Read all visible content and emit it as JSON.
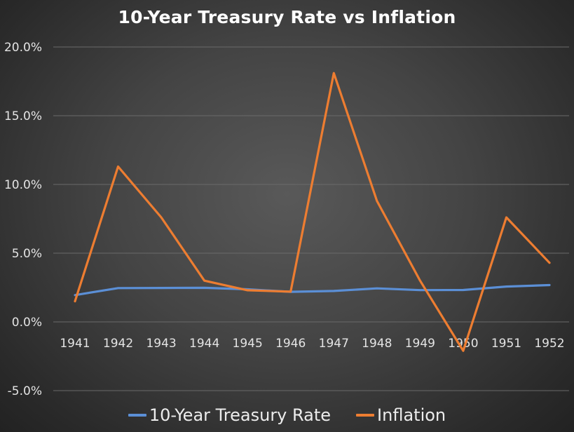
{
  "chart_data": {
    "type": "line",
    "title": "10-Year Treasury Rate vs Inflation",
    "categories": [
      "1941",
      "1942",
      "1943",
      "1944",
      "1945",
      "1946",
      "1947",
      "1948",
      "1949",
      "1950",
      "1951",
      "1952"
    ],
    "series": [
      {
        "name": "10-Year Treasury Rate",
        "color": "#5b8fd6",
        "values": [
          1.95,
          2.46,
          2.47,
          2.48,
          2.37,
          2.19,
          2.25,
          2.44,
          2.31,
          2.32,
          2.57,
          2.68
        ]
      },
      {
        "name": "Inflation",
        "color": "#ed7d31",
        "values": [
          1.5,
          11.3,
          7.6,
          3.0,
          2.3,
          2.2,
          18.1,
          8.8,
          3.0,
          -2.1,
          7.6,
          4.3
        ]
      }
    ],
    "y_ticks": [
      "20.0%",
      "15.0%",
      "10.0%",
      "5.0%",
      "0.0%",
      "-5.0%"
    ],
    "ylim": [
      -5,
      20
    ],
    "grid": true,
    "legend_position": "bottom"
  }
}
